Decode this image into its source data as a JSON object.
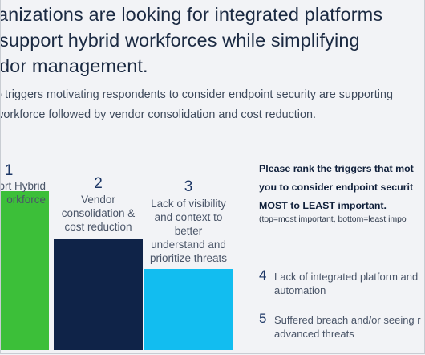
{
  "headline": {
    "line1": "anizations are looking for integrated platforms",
    "line2": "support hybrid workforces while simplifying",
    "line3": "dor management."
  },
  "subtext": {
    "line1": "o triggers motivating respondents to consider endpoint security are supporting",
    "line2": "workforce followed by vendor consolidation and cost reduction."
  },
  "bars": [
    {
      "rank": "1",
      "label": "ort Hybrid\norkforce",
      "color": "#3cbf39"
    },
    {
      "rank": "2",
      "label": "Vendor\nconsolidation &\ncost reduction",
      "color": "#0f2348"
    },
    {
      "rank": "3",
      "label": "Lack of visibility\nand context to\nbetter\nunderstand and\nprioritize threats",
      "color": "#12bdf0"
    }
  ],
  "panel": {
    "title": "Please rank the triggers that mot\nyou to consider endpoint securit\nMOST to LEAST important.",
    "note": "(top=most important, bottom=least impo"
  },
  "list": [
    {
      "rank": "4",
      "text": "Lack of integrated platform and\nautomation"
    },
    {
      "rank": "5",
      "text": "Suffered breach and/or seeing r\nadvanced threats"
    }
  ]
}
